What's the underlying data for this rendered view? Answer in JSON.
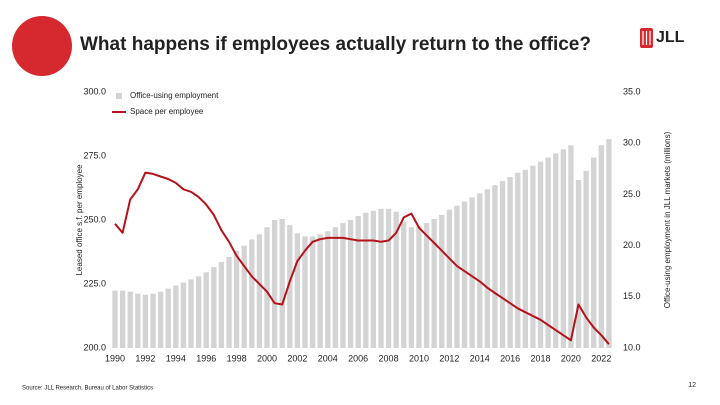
{
  "logo": "JLL",
  "source": "Source: JLL Research, Bureau of Labor Statistics",
  "page_number": "12",
  "chart_data": {
    "type": "combo",
    "title": "What happens if employees actually return to the office?",
    "y_label": "Leased office s.f. per employee",
    "y2_label": "Office-using employment in JLL markets (millions)",
    "x": [
      1990,
      1990.5,
      1991,
      1991.5,
      1992,
      1992.5,
      1993,
      1993.5,
      1994,
      1994.5,
      1995,
      1995.5,
      1996,
      1996.5,
      1997,
      1997.5,
      1998,
      1998.5,
      1999,
      1999.5,
      2000,
      2000.5,
      2001,
      2001.5,
      2002,
      2002.5,
      2003,
      2003.5,
      2004,
      2004.5,
      2005,
      2005.5,
      2006,
      2006.5,
      2007,
      2007.5,
      2008,
      2008.5,
      2009,
      2009.5,
      2010,
      2010.5,
      2011,
      2011.5,
      2012,
      2012.5,
      2013,
      2013.5,
      2014,
      2014.5,
      2015,
      2015.5,
      2016,
      2016.5,
      2017,
      2017.5,
      2018,
      2018.5,
      2019,
      2019.5,
      2020,
      2020.5,
      2021,
      2021.5,
      2022,
      2022.5
    ],
    "series": [
      {
        "name": "Office-using employment",
        "type": "bar",
        "axis": "y2",
        "color": "#d4d4d4",
        "values": [
          15.6,
          15.6,
          15.5,
          15.3,
          15.2,
          15.3,
          15.5,
          15.8,
          16.1,
          16.4,
          16.7,
          17.0,
          17.4,
          17.9,
          18.4,
          18.9,
          19.5,
          20.0,
          20.6,
          21.1,
          21.8,
          22.5,
          22.6,
          22.0,
          21.2,
          20.9,
          20.9,
          21.1,
          21.4,
          21.8,
          22.2,
          22.5,
          22.9,
          23.2,
          23.4,
          23.6,
          23.6,
          23.3,
          22.3,
          21.8,
          21.9,
          22.2,
          22.6,
          23.0,
          23.5,
          23.9,
          24.3,
          24.7,
          25.1,
          25.5,
          25.9,
          26.3,
          26.7,
          27.1,
          27.4,
          27.8,
          28.2,
          28.6,
          29.0,
          29.4,
          29.8,
          26.4,
          27.3,
          28.6,
          29.8,
          30.4
        ]
      },
      {
        "name": "Space per employee",
        "type": "line",
        "axis": "y",
        "color": "#b5121b",
        "values": [
          248.5,
          245,
          258,
          262,
          268.5,
          268,
          267,
          266,
          264.5,
          262,
          261,
          259,
          256,
          252,
          246,
          241.5,
          236,
          232,
          228,
          225,
          222,
          217.5,
          217,
          226,
          234,
          238,
          241.5,
          242.5,
          243,
          243,
          243,
          242.5,
          242,
          242,
          242,
          241.5,
          242,
          245,
          251,
          252.5,
          247,
          244,
          241,
          238,
          235,
          232,
          230,
          228,
          226,
          223.5,
          221.5,
          219.5,
          217.5,
          215.5,
          214,
          212.5,
          211,
          209,
          207,
          205,
          203,
          217,
          212,
          208,
          205,
          201.5
        ]
      }
    ],
    "xlim": [
      1989.8,
      2022.9
    ],
    "xticks": [
      1990,
      1992,
      1994,
      1996,
      1998,
      2000,
      2002,
      2004,
      2006,
      2008,
      2010,
      2012,
      2014,
      2016,
      2018,
      2020,
      2022
    ],
    "ylim": [
      200,
      300
    ],
    "yticks": [
      {
        "value": 200,
        "label": "200.0"
      },
      {
        "value": 225,
        "label": "225.0"
      },
      {
        "value": 250,
        "label": "250.0"
      },
      {
        "value": 275,
        "label": "275.0"
      },
      {
        "value": 300,
        "label": "300.0"
      }
    ],
    "y2lim": [
      10,
      35
    ],
    "y2ticks": [
      {
        "value": 10,
        "label": "10.0"
      },
      {
        "value": 15,
        "label": "15.0"
      },
      {
        "value": 20,
        "label": "20.0"
      },
      {
        "value": 25,
        "label": "25.0"
      },
      {
        "value": 30,
        "label": "30.0"
      },
      {
        "value": 35,
        "label": "35.0"
      }
    ],
    "legend": "top-left"
  }
}
